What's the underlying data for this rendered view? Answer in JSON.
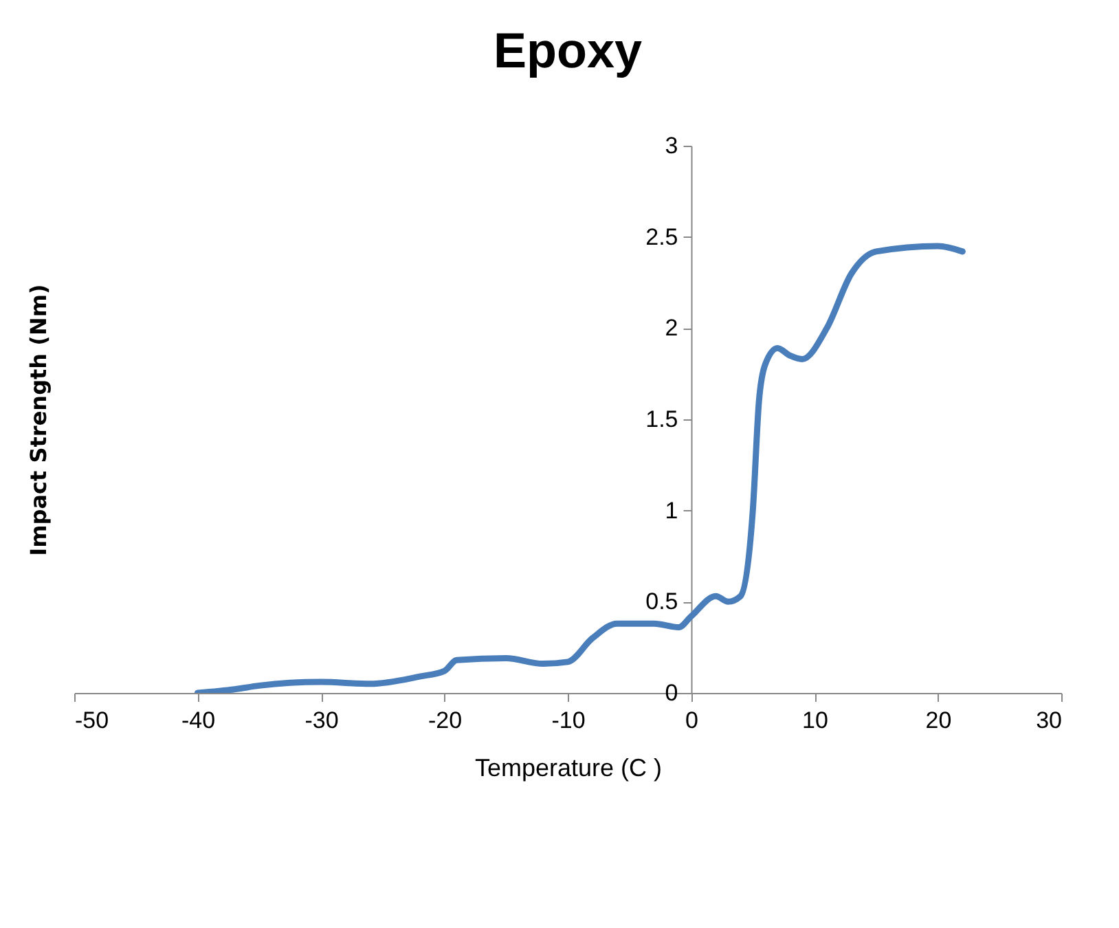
{
  "chart_data": {
    "type": "line",
    "title": "Epoxy",
    "xlabel": "Temperature (C )",
    "ylabel": "Impact Strength (Nm)",
    "x": [
      -40,
      -37,
      -35,
      -30,
      -26,
      -22,
      -20,
      -19,
      -15,
      -12,
      -10,
      -8,
      -6,
      -3,
      -1,
      0,
      2,
      3,
      4,
      5,
      5.5,
      6,
      7,
      8,
      9,
      11,
      13,
      15,
      20,
      22
    ],
    "series": [
      {
        "color": "#4a7ebb",
        "values": [
          0.0,
          0.02,
          0.04,
          0.06,
          0.05,
          0.09,
          0.12,
          0.18,
          0.19,
          0.16,
          0.17,
          0.3,
          0.38,
          0.38,
          0.36,
          0.42,
          0.53,
          0.5,
          0.53,
          1.0,
          1.6,
          1.8,
          1.89,
          1.85,
          1.83,
          2.0,
          2.3,
          2.42,
          2.45,
          2.42
        ]
      }
    ],
    "xlim": [
      -50,
      30
    ],
    "xticks": [
      -50,
      -40,
      -30,
      -20,
      -10,
      0,
      10,
      20,
      30
    ],
    "ylim": [
      0,
      3
    ],
    "yticks": [
      0,
      0.5,
      1,
      1.5,
      2,
      2.5,
      3
    ],
    "grid": false,
    "marker": "none",
    "line_style": "solid"
  }
}
